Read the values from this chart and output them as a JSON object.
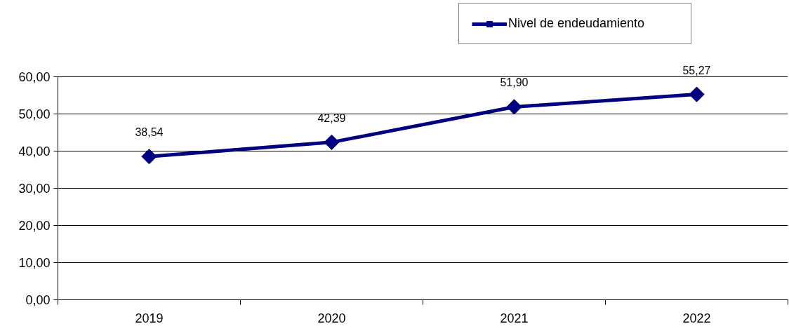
{
  "chart_data": {
    "type": "line",
    "categories": [
      "2019",
      "2020",
      "2021",
      "2022"
    ],
    "series": [
      {
        "name": "Nivel de endeudamiento",
        "color": "#000080",
        "values": [
          38.54,
          42.39,
          51.9,
          55.27
        ],
        "value_labels": [
          "38,54",
          "42,39",
          "51,90",
          "55,27"
        ]
      }
    ],
    "ylim": [
      0,
      60
    ],
    "yticks": [
      {
        "value": 0,
        "label": "0,00"
      },
      {
        "value": 10,
        "label": "10,00"
      },
      {
        "value": 20,
        "label": "20,00"
      },
      {
        "value": 30,
        "label": "30,00"
      },
      {
        "value": 40,
        "label": "40,00"
      },
      {
        "value": 50,
        "label": "50,00"
      },
      {
        "value": 60,
        "label": "60,00"
      }
    ],
    "grid": "y",
    "legend": "top right",
    "marker": "diamond",
    "line_style": "solid"
  }
}
